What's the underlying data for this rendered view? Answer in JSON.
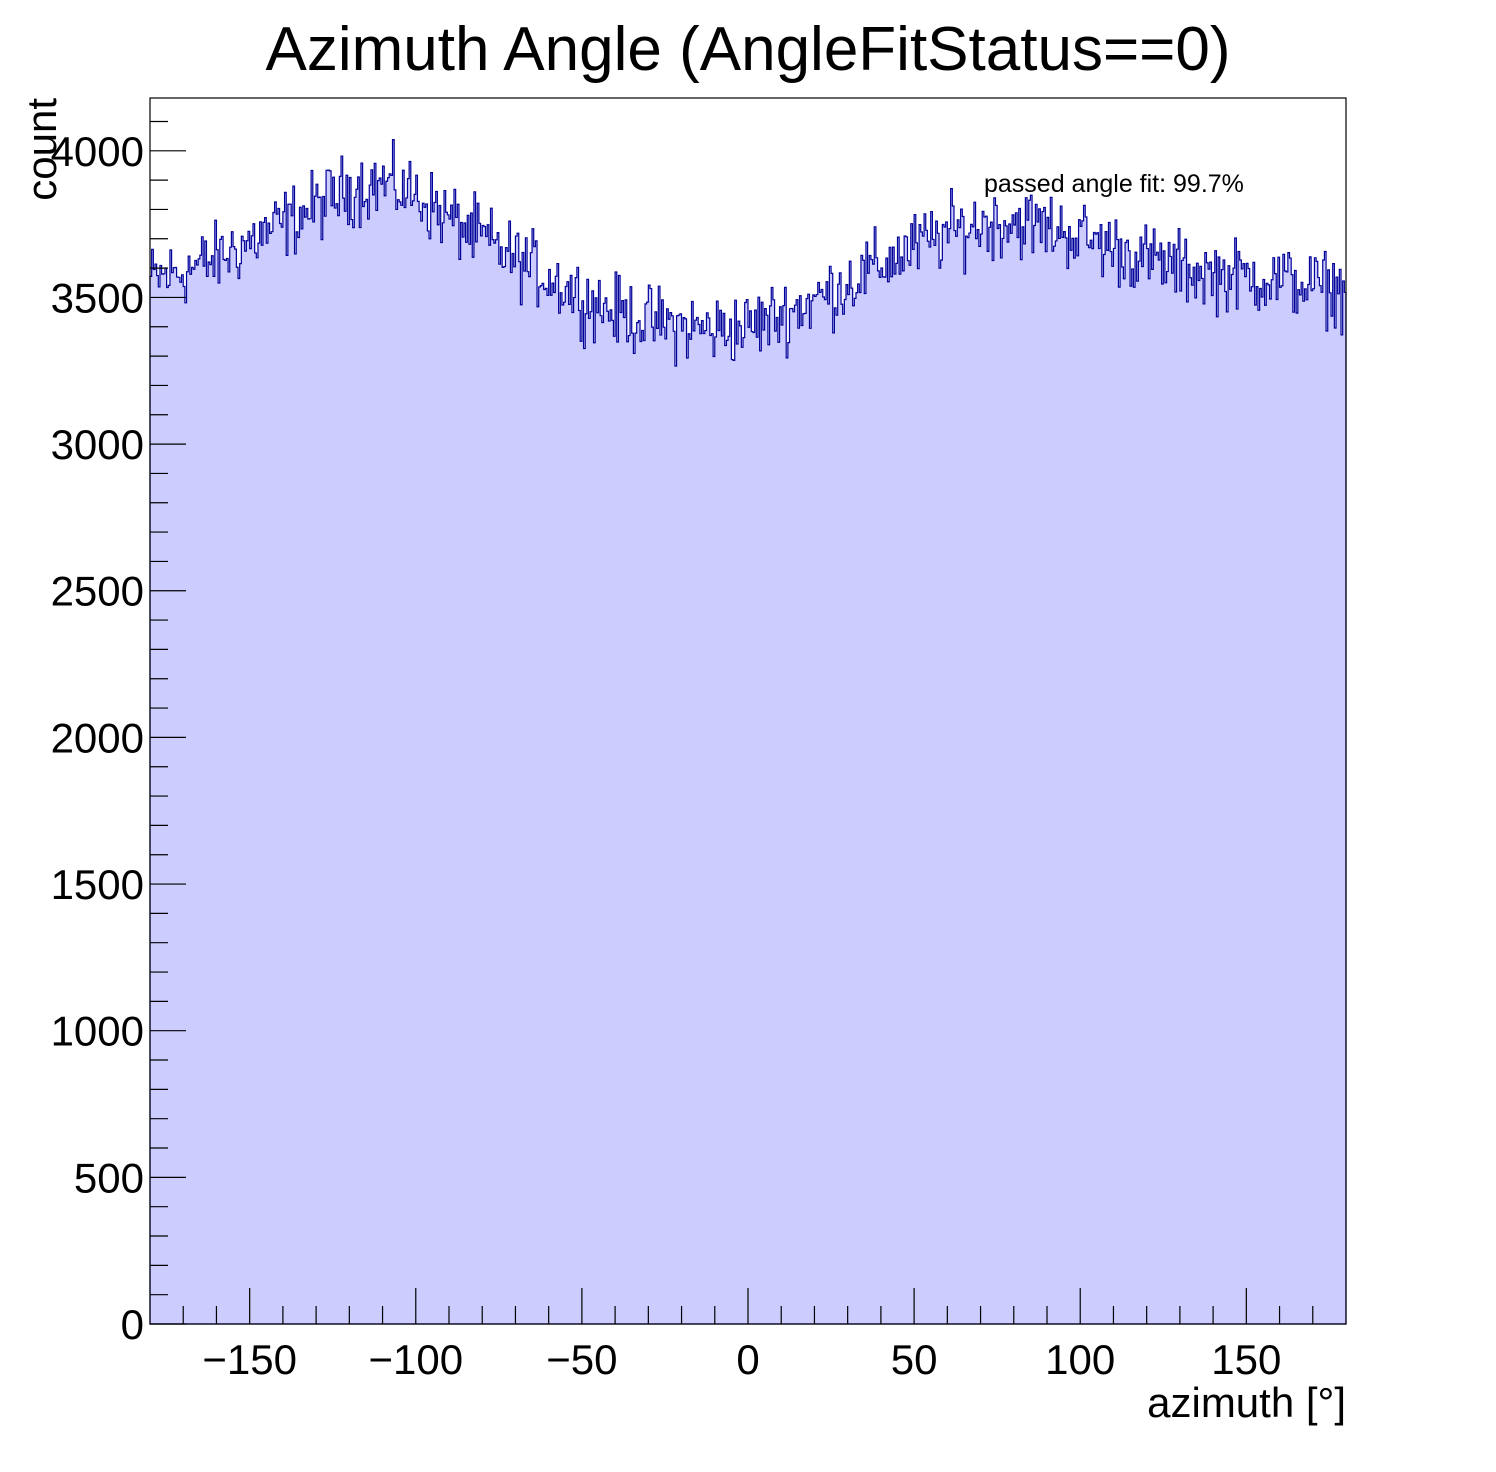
{
  "chart_data": {
    "type": "histogram",
    "title": "Azimuth Angle (AngleFitStatus==0)",
    "xlabel": "azimuth [°]",
    "ylabel": "count",
    "xlim": [
      -180,
      180
    ],
    "ylim": [
      0,
      4180
    ],
    "x_ticks": [
      -150,
      -100,
      -50,
      0,
      50,
      100,
      150
    ],
    "x_tick_labels": [
      "−150",
      "−100",
      "−50",
      "0",
      "50",
      "100",
      "150"
    ],
    "y_ticks": [
      0,
      500,
      1000,
      1500,
      2000,
      2500,
      3000,
      3500,
      4000
    ],
    "y_tick_labels": [
      "0",
      "500",
      "1000",
      "1500",
      "2000",
      "2500",
      "3000",
      "3500",
      "4000"
    ],
    "annotation": "passed angle fit: 99.7%",
    "grid": false,
    "colors": {
      "fill": "#ccccff",
      "line": "#000099",
      "frame": "#000000"
    },
    "profile_x": [
      -180,
      -170,
      -160,
      -150,
      -140,
      -130,
      -120,
      -110,
      -100,
      -90,
      -80,
      -70,
      -60,
      -50,
      -40,
      -30,
      -20,
      -10,
      0,
      10,
      20,
      30,
      40,
      50,
      60,
      70,
      80,
      90,
      100,
      110,
      120,
      130,
      140,
      150,
      160,
      170,
      180
    ],
    "profile_y": [
      3560,
      3590,
      3630,
      3690,
      3750,
      3810,
      3870,
      3890,
      3850,
      3770,
      3700,
      3630,
      3570,
      3500,
      3450,
      3420,
      3400,
      3390,
      3400,
      3440,
      3490,
      3550,
      3610,
      3670,
      3720,
      3750,
      3760,
      3740,
      3710,
      3670,
      3630,
      3600,
      3580,
      3570,
      3560,
      3540,
      3520
    ],
    "bins": 720,
    "noise_amplitude": 120
  }
}
